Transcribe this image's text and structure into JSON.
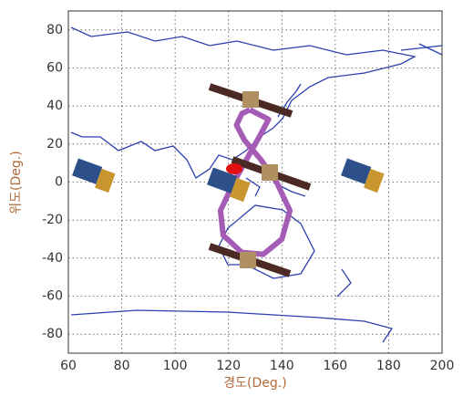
{
  "chart_data": {
    "type": "line",
    "xlabel": "경도(Deg.)",
    "ylabel": "위도(Deg.)",
    "xlim": [
      60,
      200
    ],
    "ylim": [
      -90,
      90
    ],
    "xticks": [
      60,
      80,
      100,
      120,
      140,
      160,
      180,
      200
    ],
    "yticks": [
      -80,
      -60,
      -40,
      -20,
      0,
      20,
      40,
      60,
      80
    ],
    "grid": true,
    "series": [
      {
        "color": "#a45cb5",
        "x": [
          128,
          135,
          132,
          128,
          122,
          117,
          118,
          125,
          133,
          140,
          143,
          138,
          132,
          126,
          123,
          125,
          128
        ],
        "values": [
          38,
          33,
          25,
          15,
          0,
          -15,
          -28,
          -37,
          -38,
          -30,
          -15,
          0,
          12,
          22,
          30,
          36,
          38
        ]
      }
    ]
  }
}
